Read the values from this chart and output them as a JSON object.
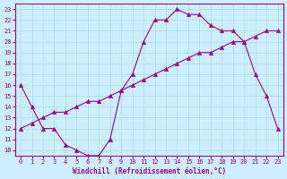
{
  "xlabel": "Windchill (Refroidissement éolien,°C)",
  "ylabel": "",
  "bg_color": "#cceeff",
  "line_color": "#990099",
  "grid_color": "#aadddd",
  "x_ticks": [
    0,
    1,
    2,
    3,
    4,
    5,
    6,
    7,
    8,
    9,
    10,
    11,
    12,
    13,
    14,
    15,
    16,
    17,
    18,
    19,
    20,
    21,
    22,
    23
  ],
  "y_ticks": [
    10,
    11,
    12,
    13,
    14,
    15,
    16,
    17,
    18,
    19,
    20,
    21,
    22,
    23
  ],
  "xlim": [
    -0.5,
    23.5
  ],
  "ylim": [
    9.5,
    23.5
  ],
  "curve1_x": [
    0,
    1,
    2,
    3,
    4,
    5,
    6,
    7,
    8,
    9,
    10,
    11,
    12,
    13,
    14,
    15,
    16,
    17,
    18,
    19,
    20,
    21,
    22,
    23
  ],
  "curve1_y": [
    16,
    14,
    12,
    12,
    10.5,
    10,
    9.5,
    9.5,
    11,
    15.5,
    17,
    20,
    22,
    22,
    23,
    22.5,
    22.5,
    21.5,
    21,
    21,
    20,
    17,
    15,
    12
  ],
  "curve2_x": [
    0,
    1,
    2,
    3,
    4,
    5,
    6,
    7,
    8,
    9,
    10,
    11,
    12,
    13,
    14,
    15,
    16,
    17,
    18,
    19,
    20,
    21,
    22,
    23
  ],
  "curve2_y": [
    12,
    12.5,
    13,
    13.5,
    13.5,
    14,
    14.5,
    14.5,
    15,
    15.5,
    16,
    16.5,
    17,
    17.5,
    18,
    18.5,
    19,
    19,
    19.5,
    20,
    20,
    20.5,
    21,
    21
  ],
  "marker": "^",
  "marker_size": 3
}
